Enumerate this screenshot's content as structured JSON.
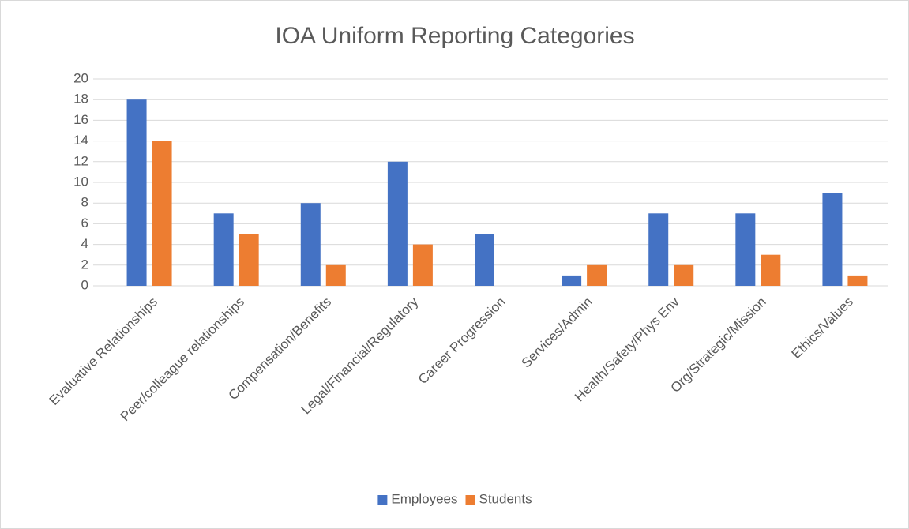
{
  "chart_data": {
    "type": "bar",
    "title": "IOA Uniform Reporting Categories",
    "categories": [
      "Evaluative Relationships",
      "Peer/colleague relationships",
      "Compensation/Benefits",
      "Legal/Financial/Regulatory",
      "Career Progression",
      "Services/Admin",
      "Health/Safety/Phys Env",
      "Org/Strategic/Mission",
      "Ethics/Values"
    ],
    "series": [
      {
        "name": "Employees",
        "color": "#4472c4",
        "values": [
          18,
          7,
          8,
          12,
          5,
          1,
          7,
          7,
          9
        ]
      },
      {
        "name": "Students",
        "color": "#ed7d31",
        "values": [
          14,
          5,
          2,
          4,
          0,
          2,
          2,
          3,
          1
        ]
      }
    ],
    "ylim": [
      0,
      20
    ],
    "yticks": [
      0,
      2,
      4,
      6,
      8,
      10,
      12,
      14,
      16,
      18,
      20
    ],
    "grid": true,
    "legend": "bottom"
  }
}
